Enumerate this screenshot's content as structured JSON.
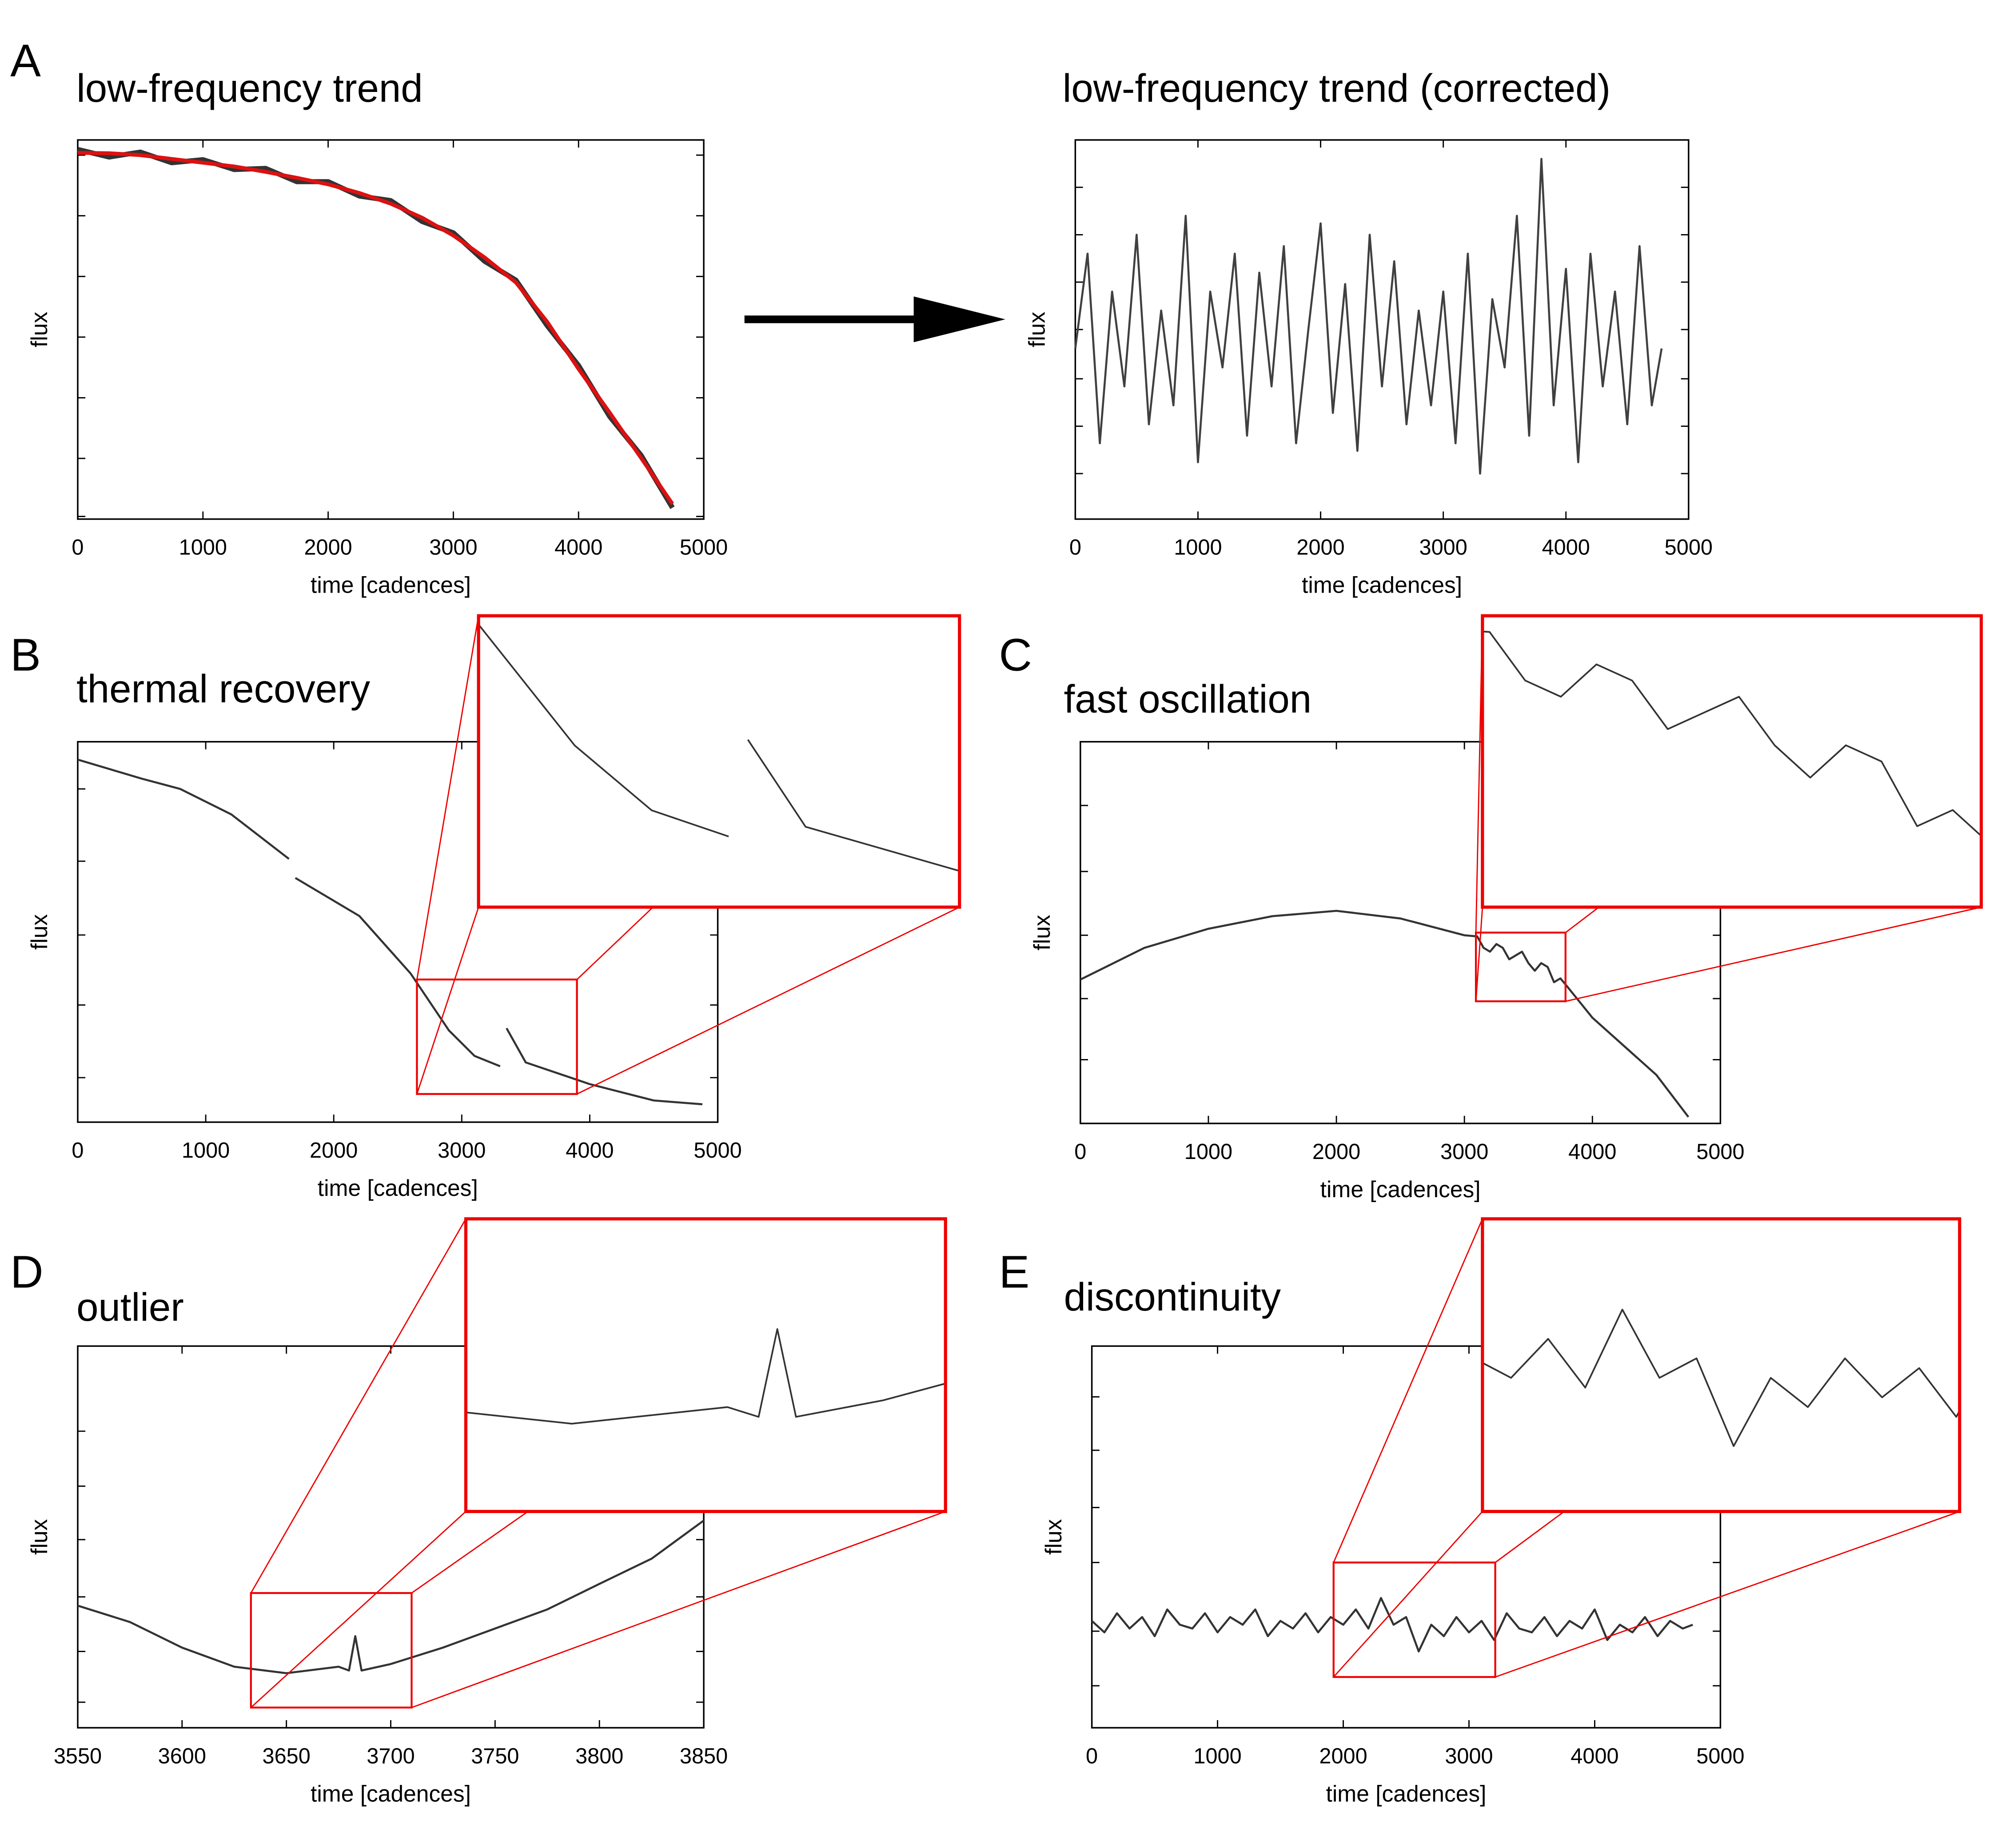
{
  "chart_data": [
    {
      "type": "line",
      "panel": "A",
      "title": "low-frequency trend",
      "xlabel": "time [cadences]",
      "ylabel": "flux",
      "xlim": [
        0,
        5000
      ],
      "ylim": [
        0,
        1
      ],
      "xticks": [
        0,
        1000,
        2000,
        3000,
        4000,
        5000
      ],
      "yticks": [
        0.007,
        0.16,
        0.32,
        0.48,
        0.64,
        0.8,
        0.96
      ],
      "x": [
        0,
        250,
        500,
        750,
        1000,
        1250,
        1500,
        1750,
        2000,
        2250,
        2500,
        2750,
        3000,
        3250,
        3500,
        3750,
        4000,
        4250,
        4500,
        4750
      ],
      "series": [
        {
          "color": "#333333",
          "values": [
            0.975,
            0.955,
            0.968,
            0.94,
            0.948,
            0.922,
            0.925,
            0.89,
            0.89,
            0.852,
            0.84,
            0.785,
            0.755,
            0.68,
            0.63,
            0.51,
            0.405,
            0.27,
            0.168,
            0.03
          ]
        },
        {
          "color": "#dd1111",
          "values": [
            0.966,
            0.965,
            0.96,
            0.95,
            0.94,
            0.93,
            0.916,
            0.9,
            0.883,
            0.86,
            0.832,
            0.795,
            0.748,
            0.69,
            0.624,
            0.52,
            0.396,
            0.28,
            0.161,
            0.04
          ]
        }
      ]
    },
    {
      "type": "line",
      "title": "low-frequency trend (corrected)",
      "xlabel": "time [cadences]",
      "ylabel": "flux",
      "xlim": [
        0,
        5000
      ],
      "ylim": [
        0,
        1
      ],
      "xticks": [
        0,
        1000,
        2000,
        3000,
        4000,
        5000
      ],
      "yticks": [
        0.12,
        0.245,
        0.37,
        0.5,
        0.625,
        0.75,
        0.875
      ],
      "x": [
        0,
        100,
        200,
        300,
        400,
        500,
        600,
        700,
        800,
        900,
        1000,
        1100,
        1200,
        1300,
        1400,
        1500,
        1600,
        1700,
        1800,
        1900,
        2000,
        2100,
        2200,
        2300,
        2400,
        2500,
        2600,
        2700,
        2800,
        2900,
        3000,
        3100,
        3200,
        3300,
        3400,
        3500,
        3600,
        3700,
        3800,
        3900,
        4000,
        4100,
        4200,
        4300,
        4400,
        4500,
        4600,
        4700,
        4780
      ],
      "series": [
        {
          "color": "#404040",
          "values": [
            0.45,
            0.7,
            0.2,
            0.6,
            0.35,
            0.75,
            0.25,
            0.55,
            0.3,
            0.8,
            0.15,
            0.6,
            0.4,
            0.7,
            0.22,
            0.65,
            0.35,
            0.72,
            0.2,
            0.5,
            0.78,
            0.28,
            0.62,
            0.18,
            0.75,
            0.35,
            0.68,
            0.25,
            0.55,
            0.3,
            0.6,
            0.2,
            0.7,
            0.12,
            0.58,
            0.4,
            0.8,
            0.22,
            0.95,
            0.3,
            0.66,
            0.15,
            0.7,
            0.35,
            0.6,
            0.25,
            0.72,
            0.3,
            0.45
          ]
        }
      ]
    },
    {
      "type": "line",
      "panel": "B",
      "title": "thermal recovery",
      "xlabel": "time [cadences]",
      "ylabel": "flux",
      "xlim": [
        0,
        5000
      ],
      "ylim": [
        0,
        1
      ],
      "xticks": [
        0,
        1000,
        2000,
        3000,
        4000,
        5000
      ],
      "yticks": [
        0.117,
        0.308,
        0.492,
        0.686,
        0.876
      ],
      "x": [
        0,
        500,
        800,
        1200,
        1650,
        1660,
        1700,
        2200,
        2600,
        2900,
        3100,
        3300,
        3320,
        3350,
        3500,
        4000,
        4500,
        4880
      ],
      "series": [
        {
          "color": "#333333",
          "values": [
            0.953,
            0.903,
            0.876,
            0.809,
            0.692,
            null,
            0.642,
            0.542,
            0.391,
            0.241,
            0.174,
            0.147,
            null,
            0.247,
            0.157,
            0.1,
            0.057,
            0.047
          ]
        }
      ],
      "zoom": {
        "xlim": [
          2650,
          3900
        ],
        "ylim": [
          0.074,
          0.375
        ]
      }
    },
    {
      "type": "line",
      "panel": "C",
      "title": "fast oscillation",
      "xlabel": "time [cadences]",
      "ylabel": "flux",
      "xlim": [
        0,
        5000
      ],
      "ylim": [
        0,
        1
      ],
      "xticks": [
        0,
        1000,
        2000,
        3000,
        4000,
        5000
      ],
      "yticks": [
        0.167,
        0.327,
        0.493,
        0.66,
        0.833
      ],
      "x": [
        0,
        500,
        1000,
        1500,
        2000,
        2500,
        3000,
        3100,
        3150,
        3200,
        3250,
        3300,
        3350,
        3400,
        3450,
        3500,
        3550,
        3600,
        3650,
        3700,
        3750,
        3800,
        4000,
        4500,
        4750
      ],
      "series": [
        {
          "color": "#333333",
          "values": [
            0.377,
            0.46,
            0.51,
            0.543,
            0.557,
            0.537,
            0.493,
            0.49,
            0.46,
            0.45,
            0.47,
            0.46,
            0.43,
            0.44,
            0.45,
            0.42,
            0.4,
            0.42,
            0.41,
            0.37,
            0.38,
            0.36,
            0.277,
            0.127,
            0.017
          ]
        }
      ],
      "zoom": {
        "xlim": [
          3090,
          3790
        ],
        "ylim": [
          0.32,
          0.5
        ]
      }
    },
    {
      "type": "line",
      "panel": "D",
      "title": "outlier",
      "xlabel": "time [cadences]",
      "ylabel": "flux",
      "xlim": [
        3550,
        3850
      ],
      "ylim": [
        0,
        1
      ],
      "xticks": [
        3550,
        3600,
        3650,
        3700,
        3750,
        3800,
        3850
      ],
      "yticks": [
        0.067,
        0.2,
        0.343,
        0.493,
        0.633,
        0.777
      ],
      "x": [
        3550,
        3575,
        3600,
        3625,
        3650,
        3675,
        3680,
        3683,
        3686,
        3700,
        3725,
        3750,
        3775,
        3800,
        3825,
        3850
      ],
      "series": [
        {
          "color": "#333333",
          "values": [
            0.32,
            0.277,
            0.21,
            0.16,
            0.143,
            0.16,
            0.15,
            0.24,
            0.15,
            0.167,
            0.21,
            0.26,
            0.31,
            0.377,
            0.443,
            0.543
          ]
        }
      ],
      "zoom": {
        "xlim": [
          3633,
          3710
        ],
        "ylim": [
          0.053,
          0.353
        ]
      }
    },
    {
      "type": "line",
      "panel": "E",
      "title": "discontinuity",
      "xlabel": "time [cadences]",
      "ylabel": "flux",
      "xlim": [
        0,
        5000
      ],
      "ylim": [
        0,
        1
      ],
      "xticks": [
        0,
        1000,
        2000,
        3000,
        4000,
        5000
      ],
      "yticks": [
        0.11,
        0.253,
        0.433,
        0.577,
        0.727,
        0.867
      ],
      "x": [
        0,
        100,
        200,
        300,
        400,
        500,
        600,
        700,
        800,
        900,
        1000,
        1100,
        1200,
        1300,
        1400,
        1500,
        1600,
        1700,
        1800,
        1900,
        2000,
        2100,
        2200,
        2300,
        2400,
        2500,
        2600,
        2700,
        2800,
        2900,
        3000,
        3100,
        3200,
        3300,
        3400,
        3500,
        3600,
        3700,
        3800,
        3900,
        4000,
        4100,
        4200,
        4300,
        4400,
        4500,
        4600,
        4700,
        4780
      ],
      "series": [
        {
          "color": "#333333",
          "values": [
            0.28,
            0.25,
            0.3,
            0.26,
            0.29,
            0.24,
            0.31,
            0.27,
            0.26,
            0.3,
            0.25,
            0.29,
            0.27,
            0.31,
            0.24,
            0.28,
            0.26,
            0.3,
            0.25,
            0.29,
            0.27,
            0.31,
            0.26,
            0.34,
            0.27,
            0.29,
            0.2,
            0.27,
            0.24,
            0.29,
            0.25,
            0.28,
            0.23,
            0.3,
            0.26,
            0.25,
            0.29,
            0.24,
            0.28,
            0.26,
            0.31,
            0.23,
            0.27,
            0.25,
            0.29,
            0.24,
            0.28,
            0.26,
            0.27
          ]
        }
      ],
      "zoom": {
        "xlim": [
          1923,
          3209
        ],
        "ylim": [
          0.133,
          0.433
        ]
      }
    }
  ]
}
